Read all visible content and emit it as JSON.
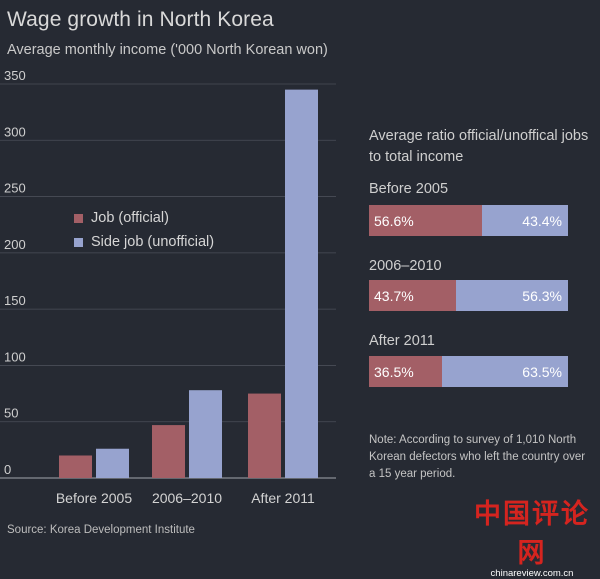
{
  "title": "Wage growth in North Korea",
  "subtitle": "Average monthly income ('000 North Korean won)",
  "colors": {
    "official": "#a35f66",
    "unofficial": "#97a3cf",
    "background": "#262a33",
    "gridline": "#4a4e58"
  },
  "chart_data": [
    {
      "type": "bar",
      "title": "Wage growth in North Korea",
      "subtitle": "Average monthly income ('000 North Korean won)",
      "categories": [
        "Before 2005",
        "2006–2010",
        "After 2011"
      ],
      "series": [
        {
          "name": "Job (official)",
          "values": [
            20,
            47,
            75
          ]
        },
        {
          "name": "Side job (unofficial)",
          "values": [
            26,
            78,
            345
          ]
        }
      ],
      "yticks": [
        0,
        50,
        100,
        150,
        200,
        250,
        300,
        350
      ],
      "ylim": [
        0,
        350
      ],
      "grid": true,
      "legend": "left"
    },
    {
      "type": "bar",
      "title": "Average ratio official/unoffical jobs to total income",
      "categories": [
        "Before 2005",
        "2006–2010",
        "After 2011"
      ],
      "series": [
        {
          "name": "Job (official)",
          "values": [
            56.6,
            43.7,
            36.5
          ]
        },
        {
          "name": "Side job (unofficial)",
          "values": [
            43.4,
            56.3,
            63.5
          ]
        }
      ],
      "stacked": true,
      "unit": "%"
    }
  ],
  "legend": [
    {
      "label": "Job (official)",
      "color": "#a35f66"
    },
    {
      "label": "Side job (unofficial)",
      "color": "#97a3cf"
    }
  ],
  "ratio": {
    "title": "Average ratio official/unoffical jobs to total income",
    "groups": [
      {
        "label": "Before 2005",
        "official": 56.6,
        "unofficial": 43.4,
        "official_text": "56.6%",
        "unofficial_text": "43.4%"
      },
      {
        "label": "2006–2010",
        "official": 43.7,
        "unofficial": 56.3,
        "official_text": "43.7%",
        "unofficial_text": "56.3%"
      },
      {
        "label": "After 2011",
        "official": 36.5,
        "unofficial": 63.5,
        "official_text": "36.5%",
        "unofficial_text": "63.5%"
      }
    ]
  },
  "note": "Note: According to survey of 1,010 North Korean defectors who left the country over a 15 year period.",
  "source": "Source: Korea Development Institute",
  "watermark": {
    "cn": "中国评论网",
    "url": "chinareview.com.cn"
  }
}
